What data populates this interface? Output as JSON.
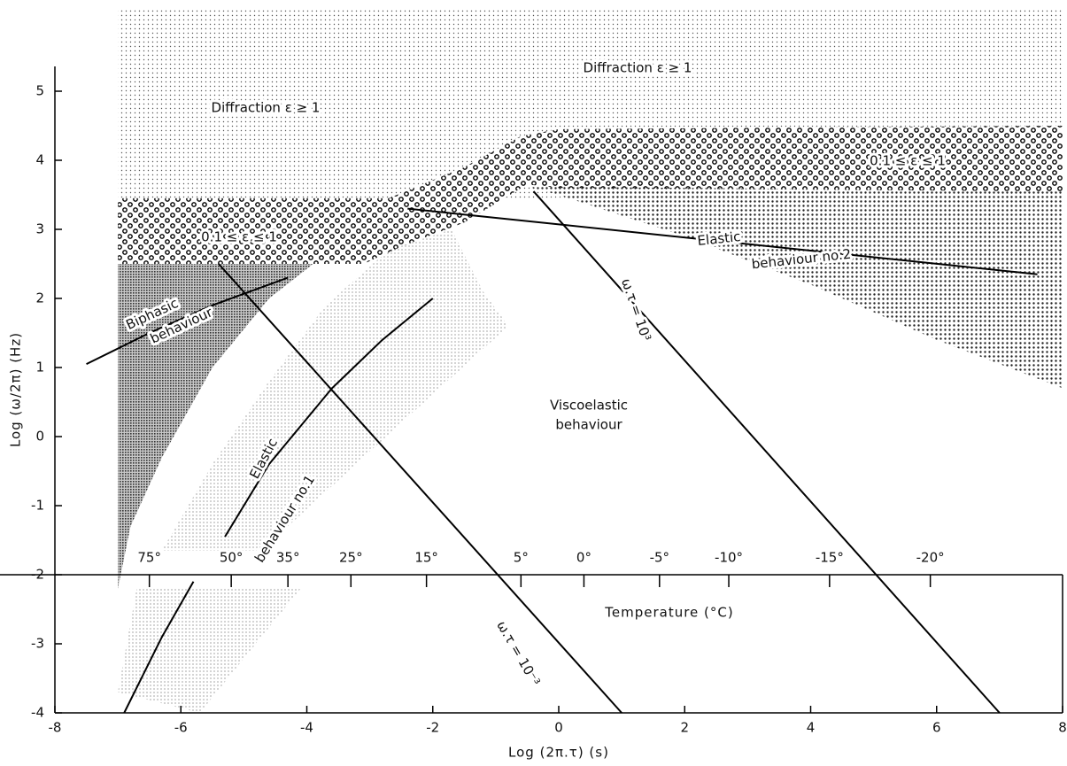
{
  "chart_data": {
    "type": "line",
    "xlabel": "Log (2π.τ) (s)",
    "ylabel": "Log (ω/2π) (Hz)",
    "xlim": [
      -8,
      8
    ],
    "ylim": [
      -4,
      6.2
    ],
    "xticks": [
      -8,
      -6,
      -4,
      -2,
      0,
      2,
      4,
      6,
      8
    ],
    "yticks": [
      -4,
      -3,
      -2,
      -1,
      0,
      1,
      2,
      3,
      4,
      5
    ],
    "regions": [
      {
        "pattern": "fine",
        "x": [
          -7,
          8,
          8,
          -7
        ],
        "y": [
          6.2,
          6.2,
          3.45,
          3.45
        ]
      },
      {
        "pattern": "bubbles",
        "x": [
          -7,
          -2.7,
          -1.5,
          -0.6,
          0,
          8,
          8,
          0,
          -0.5,
          -1.5,
          -2.5,
          -3.1,
          -7
        ],
        "y": [
          3.45,
          3.45,
          3.9,
          4.35,
          4.45,
          4.5,
          3.55,
          3.6,
          3.65,
          3.1,
          2.75,
          2.5,
          2.5
        ]
      },
      {
        "pattern": "dense",
        "x": [
          -0.5,
          8,
          8,
          6,
          4,
          2,
          0
        ],
        "y": [
          3.62,
          3.55,
          0.7,
          1.4,
          2.2,
          2.9,
          3.5
        ]
      },
      {
        "pattern": "cross",
        "x": [
          -7,
          -3.9,
          -4.6,
          -5.5,
          -6.3,
          -6.8,
          -7
        ],
        "y": [
          2.5,
          2.5,
          2.0,
          1.0,
          -0.3,
          -1.3,
          -2.2
        ]
      },
      {
        "pattern": "light",
        "x": [
          -6.3,
          -5.5,
          -4.6,
          -3.7,
          -2.7,
          -1.7,
          -1.2,
          -0.8,
          -2.5,
          -4.3,
          -4.8
        ],
        "y": [
          -1.65,
          -0.4,
          0.8,
          1.9,
          2.7,
          3.0,
          2.1,
          1.6,
          0.2,
          -1.3,
          -1.65
        ]
      },
      {
        "pattern": "light",
        "x": [
          -6.7,
          -4.1,
          -5.7,
          -7
        ],
        "y": [
          -2.2,
          -2.2,
          -4.0,
          -3.7
        ]
      }
    ],
    "lines": [
      {
        "x": [
          -0.4,
          7
        ],
        "values": [
          3.55,
          -4
        ]
      },
      {
        "x": [
          -5.4,
          1
        ],
        "values": [
          2.5,
          -4
        ]
      },
      {
        "x": [
          -7.5,
          -6.5,
          -5.5,
          -4.3
        ],
        "values": [
          1.05,
          1.5,
          1.9,
          2.3
        ]
      },
      {
        "x": [
          -5.3,
          -4.6,
          -3.6,
          -2.8,
          -2
        ],
        "values": [
          -1.45,
          -0.4,
          0.7,
          1.4,
          2
        ]
      },
      {
        "x": [
          -6.9,
          -6.3,
          -5.8
        ],
        "values": [
          -4,
          -2.9,
          -2.1
        ]
      },
      {
        "x": [
          -2.4,
          7.6
        ],
        "values": [
          3.3,
          2.35
        ]
      }
    ],
    "temperature_ticks": [
      {
        "value": -6.5,
        "label": "75°"
      },
      {
        "value": -5.2,
        "label": "50°"
      },
      {
        "value": -4.3,
        "label": "35°"
      },
      {
        "value": -3.3,
        "label": "25°"
      },
      {
        "value": -2.1,
        "label": "15°"
      },
      {
        "value": -0.6,
        "label": "5°"
      },
      {
        "value": 0.4,
        "label": "0°"
      },
      {
        "value": 1.6,
        "label": "-5°"
      },
      {
        "value": 2.7,
        "label": "-10°"
      },
      {
        "value": 4.3,
        "label": "-15°"
      },
      {
        "value": 5.9,
        "label": "-20°"
      }
    ],
    "temperature_label": "Temperature (°C)",
    "annotations": [
      "Diffraction ε ≥ 1",
      "Diffraction ε ≥ 1",
      "0.1 ≤ ε ≤ 1",
      "0.1 ≤ ε ≤ 1",
      "Viscoelastic",
      "behaviour",
      "Biphasic",
      "behaviour",
      "Elastic",
      "behaviour no.1",
      "Elastic",
      "behaviour no.2",
      "ω.τ = 10³",
      "ω.τ = 10⁻³"
    ]
  }
}
